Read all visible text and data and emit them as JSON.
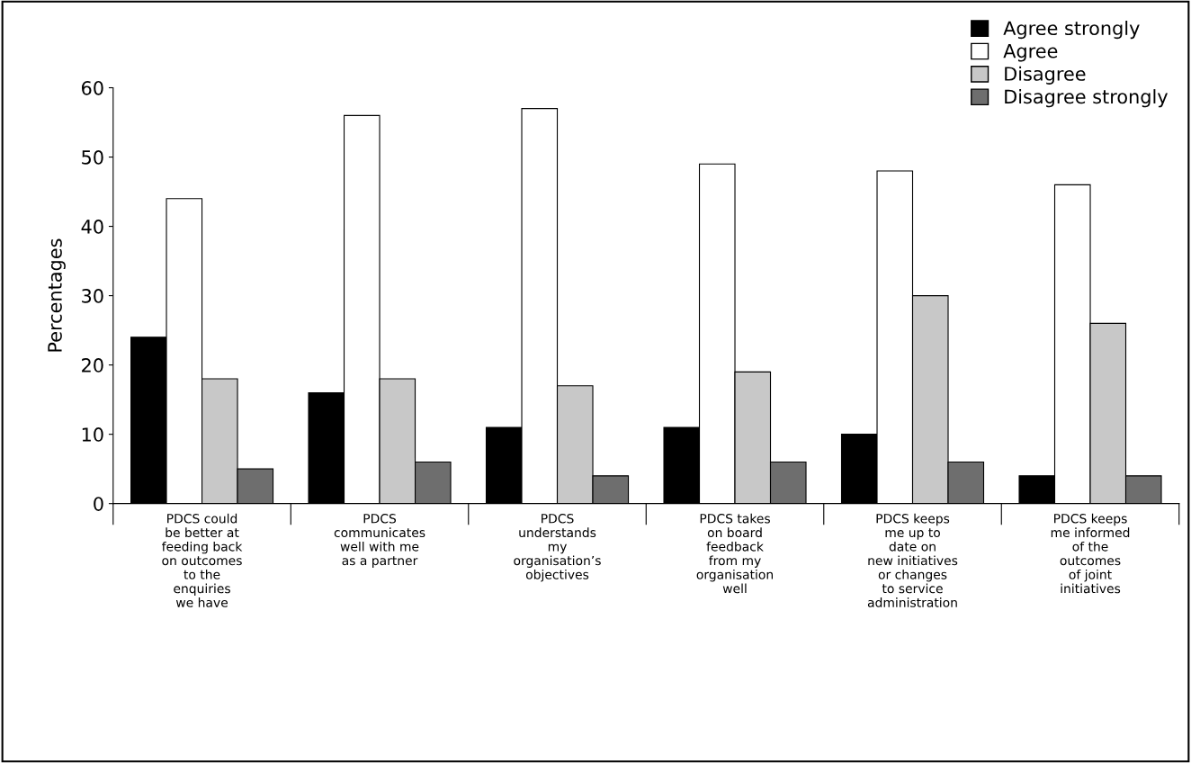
{
  "chart_data": {
    "type": "bar",
    "ylabel": "Percentages",
    "categories": [
      "PDCS could\nbe better at\nfeeding back\non outcomes\nto the\nenquiries\nwe have",
      "PDCS\ncommunicates\nwell with me\nas a partner",
      "PDCS\nunderstands\nmy\norganisation’s\nobjectives",
      "PDCS takes\non board\nfeedback\nfrom my\norganisation\nwell",
      "PDCS keeps\nme up to\ndate on\nnew initiatives\nor changes\nto service\nadministration",
      "PDCS keeps\nme informed\nof the\noutcomes\nof joint\ninitiatives"
    ],
    "series": [
      {
        "name": "Agree strongly",
        "color": "#000000",
        "values": [
          24,
          16,
          11,
          11,
          10,
          4
        ]
      },
      {
        "name": "Agree",
        "color": "#ffffff",
        "values": [
          44,
          56,
          57,
          49,
          48,
          46
        ]
      },
      {
        "name": "Disagree",
        "color": "#c8c8c8",
        "values": [
          18,
          18,
          17,
          19,
          30,
          26
        ]
      },
      {
        "name": "Disagree strongly",
        "color": "#6e6e6e",
        "values": [
          5,
          6,
          4,
          6,
          6,
          4
        ]
      }
    ],
    "ylim": [
      0,
      60
    ],
    "yticks": [
      0,
      10,
      20,
      30,
      40,
      50,
      60
    ],
    "grid": false,
    "legend": "top right"
  }
}
